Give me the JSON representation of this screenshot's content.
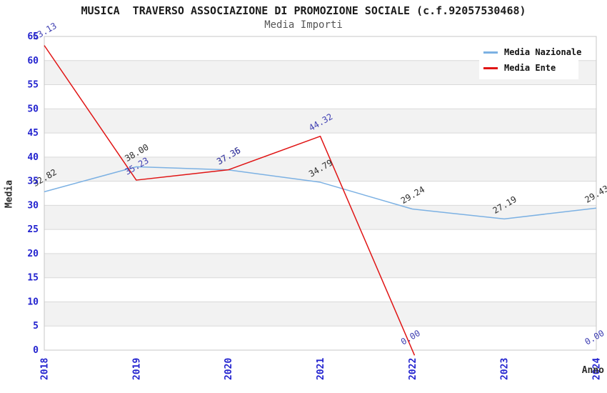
{
  "header": {
    "title": "MUSICA  TRAVERSO ASSOCIAZIONE DI PROMOZIONE SOCIALE (c.f.92057530468)",
    "subtitle": "Media Importi"
  },
  "colors": {
    "tick_label_blue": "#2323cf",
    "band_gray": "#f2f2f2",
    "grid_line": "#d9d9d9",
    "plot_border": "#c7c7c7",
    "title_color": "#1c1c1c",
    "subtitle_color": "#555555",
    "legend_text": "#111111"
  },
  "chart_data": {
    "type": "line",
    "title": "MUSICA  TRAVERSO ASSOCIAZIONE DI PROMOZIONE SOCIALE (c.f.92057530468)",
    "subtitle": "Media Importi",
    "xlabel": "Anno",
    "ylabel": "Media",
    "x_categories": [
      "2018",
      "2019",
      "2020",
      "2021",
      "2022",
      "2023",
      "2024"
    ],
    "series": [
      {
        "name": "Media Nazionale",
        "color": "#7cb1e3",
        "label_color": "#2e2e2e",
        "values": [
          32.82,
          38.0,
          37.35,
          34.79,
          29.24,
          27.19,
          29.43
        ]
      },
      {
        "name": "Media Ente",
        "color": "#e01414",
        "label_color": "#3e3eb2",
        "values": [
          63.13,
          35.23,
          37.36,
          44.32,
          0.0,
          null,
          0.0
        ]
      }
    ],
    "ylim": [
      0,
      65
    ],
    "ytick_step": 5,
    "grid": "horizontal-gridlines-with-alternating-bands",
    "legend_position": "top-right",
    "point_label_decimals": 2
  }
}
